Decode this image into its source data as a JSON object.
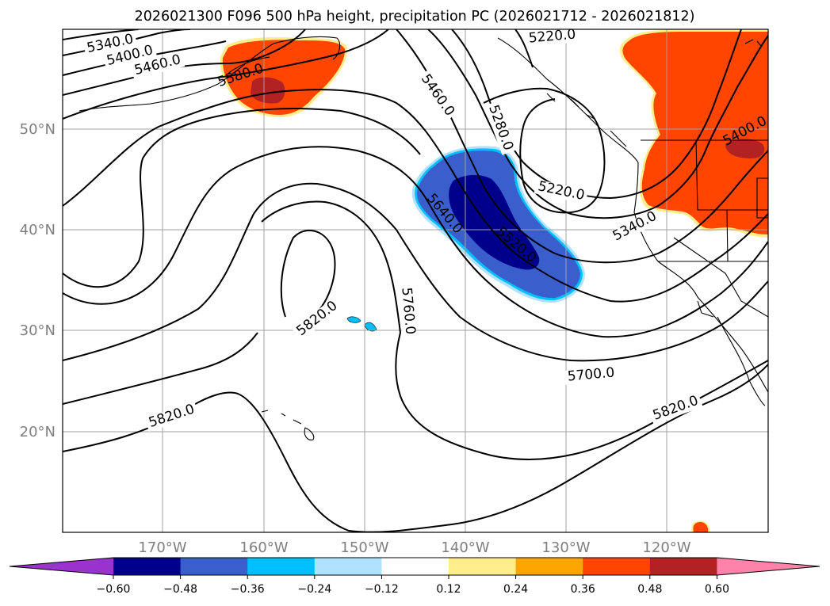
{
  "title": "2026021300 F096 500 hPa height, precipitation PC (2026021712 - 2026021812)",
  "lat_ticks": [
    "50°N",
    "40°N",
    "30°N",
    "20°N"
  ],
  "lon_ticks": [
    "170°W",
    "160°W",
    "150°W",
    "140°W",
    "130°W",
    "120°W"
  ],
  "contour_labels": [
    "5340.0",
    "5400.0",
    "5460.0",
    "5580.0",
    "5220.0",
    "5460.0",
    "5280.0",
    "5220.0",
    "5640.0",
    "5520.0",
    "5340.0",
    "5400.0",
    "5820.0",
    "5760.0",
    "5700.0",
    "5820.0",
    "5820.0"
  ],
  "colorbar": {
    "ticks": [
      "−0.60",
      "−0.48",
      "−0.36",
      "−0.24",
      "−0.12",
      "0.12",
      "0.24",
      "0.36",
      "0.48",
      "0.60"
    ],
    "colors": [
      "#9a32cd",
      "#00008b",
      "#3a5fcd",
      "#00bfff",
      "#b0e2ff",
      "#ffffff",
      "#ffec8b",
      "#ffa500",
      "#ff4500",
      "#b22222",
      "#ff82ab"
    ]
  }
}
